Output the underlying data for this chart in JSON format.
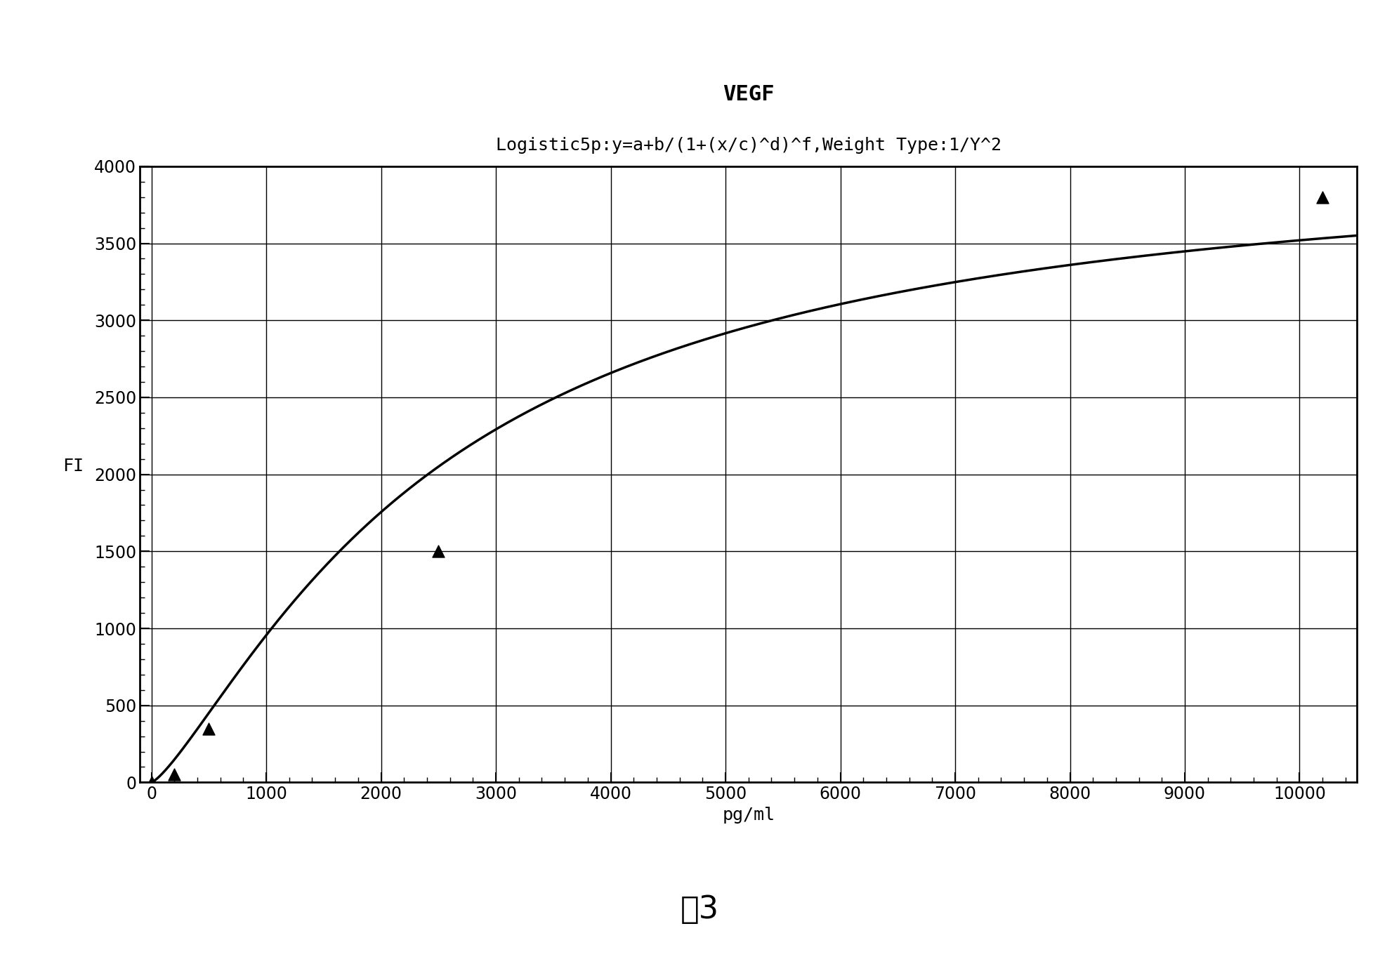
{
  "title": "VEGF",
  "subtitle": "Logistic5p:y=a+b/(1+(x/c)^d)^f,Weight Type:1/Y^2",
  "xlabel": "pg/ml",
  "ylabel": "FI",
  "xlim": [
    -100,
    10500
  ],
  "ylim": [
    0,
    4000
  ],
  "xticks": [
    0,
    1000,
    2000,
    3000,
    4000,
    5000,
    6000,
    7000,
    8000,
    9000,
    10000
  ],
  "yticks": [
    0,
    500,
    1000,
    1500,
    2000,
    2500,
    3000,
    3500,
    4000
  ],
  "data_points_x": [
    0,
    200,
    500,
    2500,
    10200
  ],
  "data_points_y": [
    0,
    50,
    350,
    1500,
    3800
  ],
  "background_color": "#ffffff",
  "line_color": "#000000",
  "marker_color": "#000000",
  "grid_color": "#000000",
  "caption": "图3",
  "caption_fontsize": 32,
  "title_fontsize": 22,
  "subtitle_fontsize": 18,
  "axis_label_fontsize": 18,
  "tick_fontsize": 17
}
